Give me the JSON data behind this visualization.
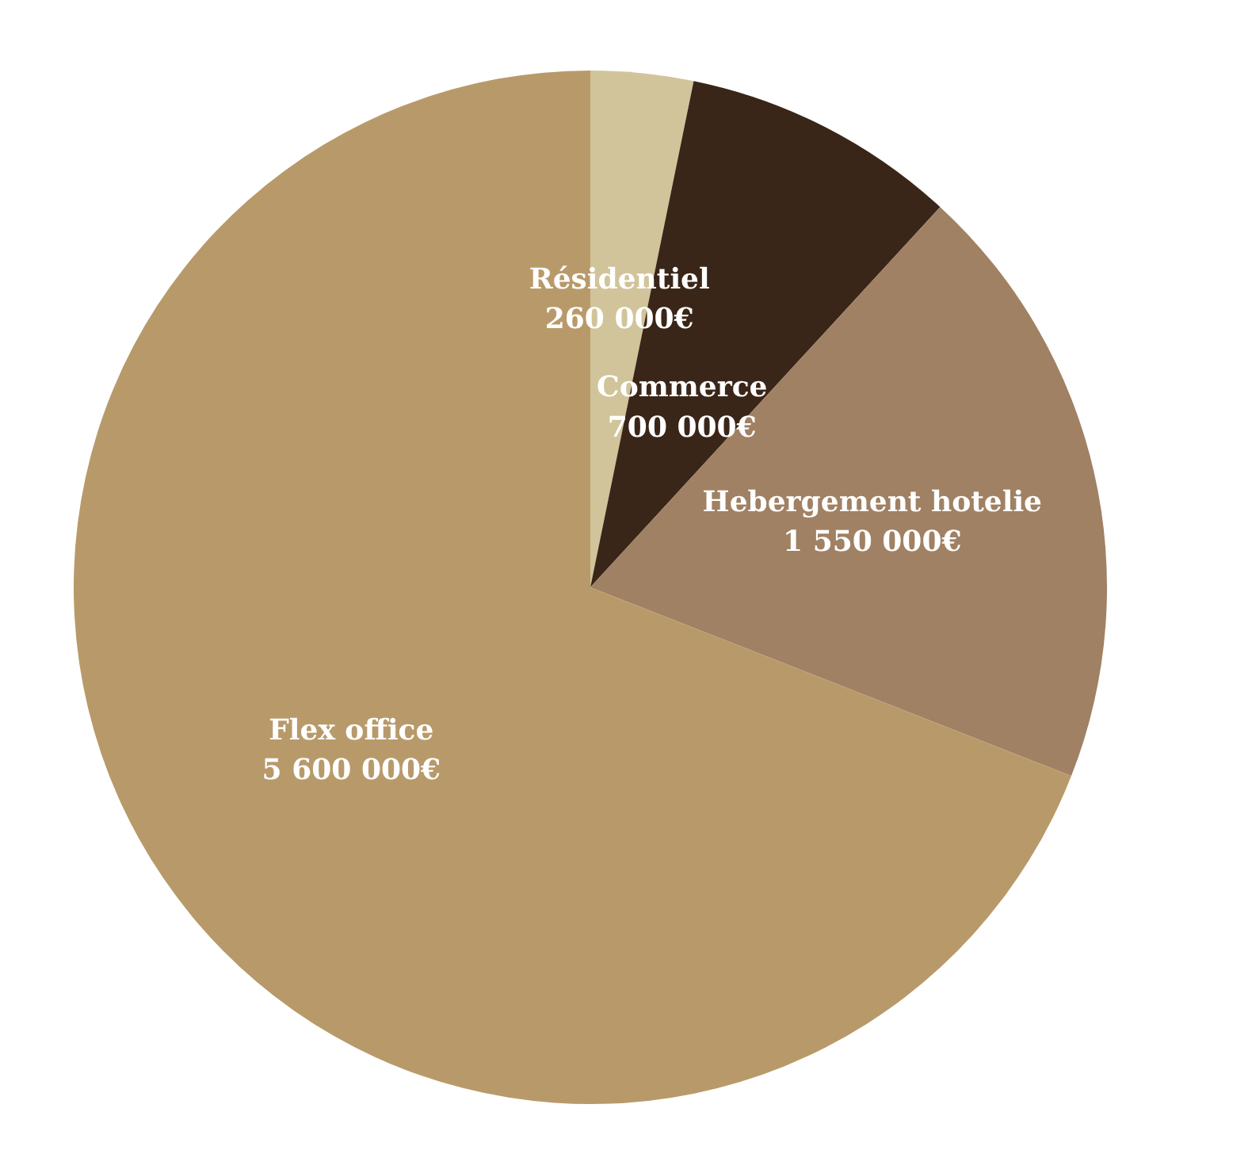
{
  "chart_data": {
    "type": "pie",
    "categories": [
      "Résidentiel",
      "Commerce",
      "Hebergement hotelie",
      "Flex office"
    ],
    "values": [
      260000,
      700000,
      1550000,
      5600000
    ],
    "colors": [
      "#d1c49a",
      "#3a2618",
      "#a08163",
      "#b89a6a"
    ],
    "value_labels": [
      "260 000€",
      "700 000€",
      "1 550 000€",
      "5 600 000€"
    ]
  }
}
